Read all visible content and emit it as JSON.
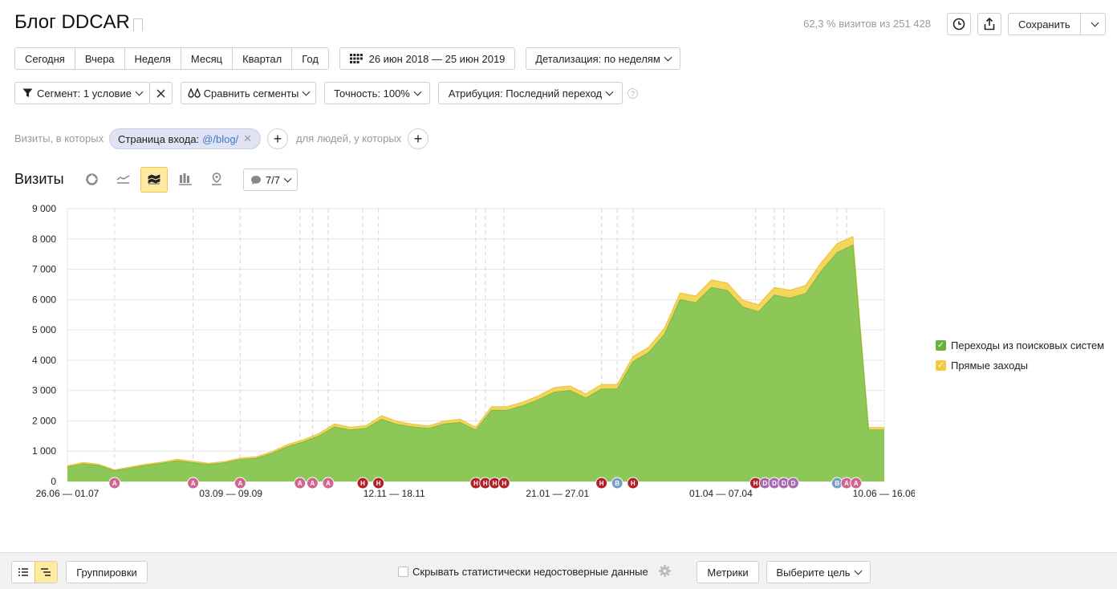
{
  "header": {
    "title": "Блог DDCAR",
    "visits_stat": "62,3 % визитов из 251 428",
    "save_label": "Сохранить"
  },
  "period": {
    "buttons": [
      "Сегодня",
      "Вчера",
      "Неделя",
      "Месяц",
      "Квартал",
      "Год"
    ],
    "date_range": "26 июн 2018 — 25 июн 2019",
    "detail": "Детализация: по неделям"
  },
  "filters": {
    "segment": "Сегмент: 1 условие",
    "compare": "Сравнить сегменты",
    "accuracy": "Точность: 100%",
    "attribution": "Атрибуция: Последний переход",
    "help": "?"
  },
  "condition": {
    "prefix": "Визиты, в которых",
    "chip_label": "Страница входа:",
    "chip_value": "@/blog/",
    "people_label": "для людей, у которых"
  },
  "chart_section": {
    "title": "Визиты",
    "annotations_count": "7/7"
  },
  "colors": {
    "green": "#8cc757",
    "yellow": "#f5d55a",
    "accent": "#ffeba0"
  },
  "chart_data": {
    "type": "area",
    "stacked": true,
    "ylim": [
      0,
      9000
    ],
    "yticks": [
      "9 000",
      "8 000",
      "7 000",
      "6 000",
      "5 000",
      "4 000",
      "3 000",
      "2 000",
      "1 000",
      "0"
    ],
    "xtick_labels": [
      "26.06 — 01.07",
      "03.09 — 09.09",
      "12.11 — 18.11",
      "21.01 — 27.01",
      "01.04 — 07.04",
      "10.06 — 16.06"
    ],
    "x_count": 53,
    "series": [
      {
        "name": "Переходы из поисковых систем",
        "color": "#8cc757",
        "values": [
          480,
          580,
          530,
          350,
          440,
          530,
          600,
          680,
          620,
          560,
          620,
          720,
          760,
          920,
          1150,
          1300,
          1500,
          1800,
          1700,
          1750,
          2050,
          1880,
          1800,
          1750,
          1900,
          1950,
          1700,
          2350,
          2350,
          2500,
          2700,
          2950,
          3000,
          2750,
          3050,
          3050,
          3950,
          4250,
          4850,
          6000,
          5900,
          6400,
          6300,
          5750,
          5600,
          6150,
          6050,
          6200,
          6950,
          7550,
          7800,
          1700,
          1700
        ]
      },
      {
        "name": "Прямые заходы",
        "color": "#f5d55a",
        "values": [
          40,
          50,
          40,
          30,
          40,
          40,
          40,
          50,
          50,
          40,
          40,
          50,
          50,
          60,
          70,
          70,
          80,
          100,
          90,
          90,
          120,
          100,
          90,
          80,
          100,
          100,
          90,
          120,
          120,
          120,
          130,
          150,
          150,
          140,
          150,
          150,
          170,
          180,
          200,
          220,
          220,
          250,
          250,
          230,
          230,
          250,
          260,
          270,
          280,
          300,
          280,
          80,
          80
        ]
      }
    ],
    "annotations": [
      {
        "x": 3,
        "label": "A"
      },
      {
        "x": 8,
        "label": "A"
      },
      {
        "x": 11,
        "label": "A"
      },
      {
        "x": 14.8,
        "label": "A"
      },
      {
        "x": 15.6,
        "label": "A"
      },
      {
        "x": 16.6,
        "label": "A"
      },
      {
        "x": 18.8,
        "label": "H"
      },
      {
        "x": 19.8,
        "label": "H"
      },
      {
        "x": 26,
        "label": "H"
      },
      {
        "x": 26.6,
        "label": "H"
      },
      {
        "x": 27.2,
        "label": "H"
      },
      {
        "x": 27.8,
        "label": "H"
      },
      {
        "x": 34,
        "label": "H"
      },
      {
        "x": 35,
        "label": "B"
      },
      {
        "x": 36,
        "label": "H"
      },
      {
        "x": 43.8,
        "label": "H"
      },
      {
        "x": 44.4,
        "label": "D"
      },
      {
        "x": 45,
        "label": "D"
      },
      {
        "x": 45.6,
        "label": "D"
      },
      {
        "x": 46.2,
        "label": "D"
      },
      {
        "x": 49,
        "label": "B"
      },
      {
        "x": 49.6,
        "label": "A"
      },
      {
        "x": 50.2,
        "label": "A"
      }
    ]
  },
  "bottom": {
    "group_label": "Группировки",
    "hide_label": "Скрывать статистически недостоверные данные",
    "metrics_label": "Метрики",
    "goal_label": "Выберите цель"
  }
}
